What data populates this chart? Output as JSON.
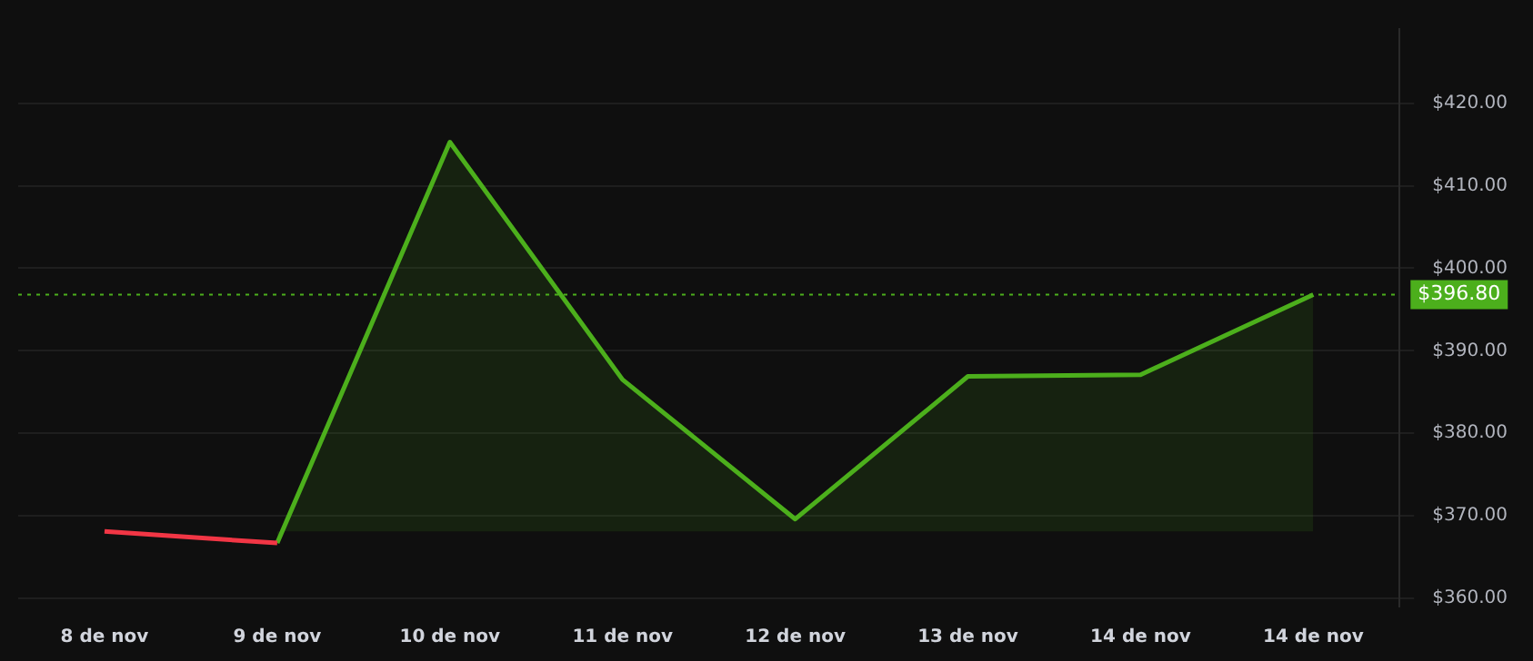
{
  "chart_data": {
    "type": "line",
    "categories": [
      "8 de nov",
      "9 de nov",
      "10 de nov",
      "11 de nov",
      "12 de nov",
      "13 de nov",
      "14 de nov",
      "14 de nov"
    ],
    "series": [
      {
        "color": "#f23645",
        "values": [
          368.1,
          366.7,
          null,
          null,
          null,
          null,
          null,
          null
        ]
      },
      {
        "type": "area",
        "color": "#4caf1c",
        "values": [
          null,
          366.7,
          415.3,
          386.5,
          369.6,
          386.9,
          387.1,
          396.8
        ]
      }
    ],
    "ylim": [
      359,
      429
    ],
    "yticks": [
      {
        "value": 360,
        "label": "$360.00"
      },
      {
        "value": 370,
        "label": "$370.00"
      },
      {
        "value": 380,
        "label": "$380.00"
      },
      {
        "value": 390,
        "label": "$390.00"
      },
      {
        "value": 400,
        "label": "$400.00"
      },
      {
        "value": 410,
        "label": "$410.00"
      },
      {
        "value": 420,
        "label": "$420.00"
      }
    ],
    "ref_lines": [
      {
        "axis": "y",
        "value": 396.8,
        "label": "$396.80",
        "color": "#4caf1c",
        "line_style": "dotted"
      }
    ],
    "grid": "y",
    "legend": false,
    "marker": "none",
    "line_style": "solid"
  }
}
